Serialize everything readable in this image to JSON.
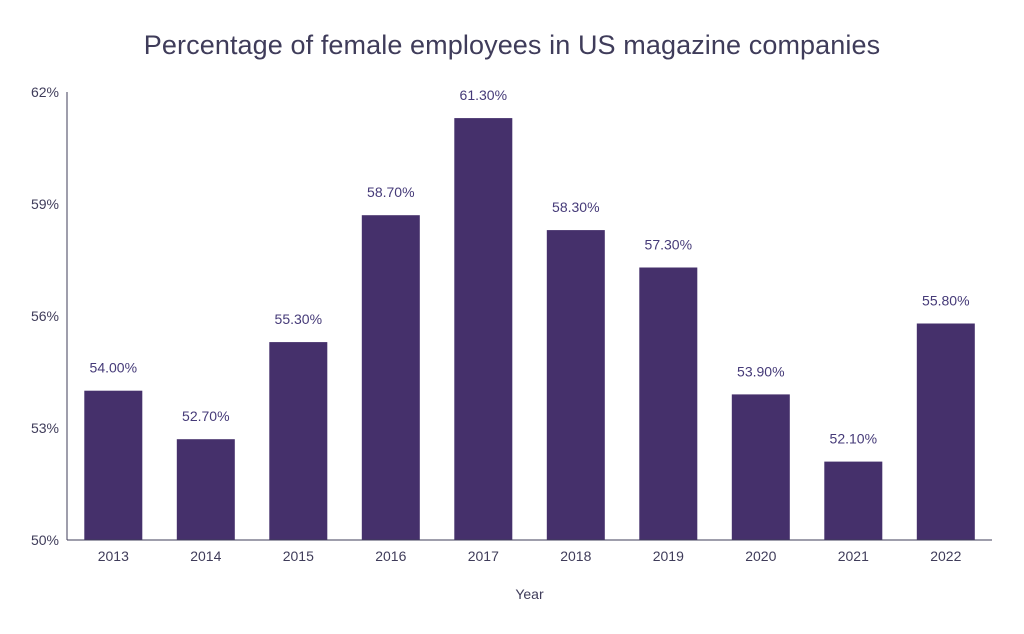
{
  "chart_data": {
    "type": "bar",
    "title": "Percentage of female employees in US magazine companies",
    "xlabel": "Year",
    "ylabel": "",
    "categories": [
      "2013",
      "2014",
      "2015",
      "2016",
      "2017",
      "2018",
      "2019",
      "2020",
      "2021",
      "2022"
    ],
    "values": [
      54.0,
      52.7,
      55.3,
      58.7,
      61.3,
      58.3,
      57.3,
      53.9,
      52.1,
      55.8
    ],
    "data_labels": [
      "54.00%",
      "52.70%",
      "55.30%",
      "58.70%",
      "61.30%",
      "58.30%",
      "57.30%",
      "53.90%",
      "52.10%",
      "55.80%"
    ],
    "ylim": [
      50,
      62
    ],
    "yticks": [
      50,
      53,
      56,
      59,
      62
    ],
    "ytick_labels": [
      "50%",
      "53%",
      "56%",
      "59%",
      "62%"
    ],
    "grid": false,
    "legend": "none",
    "bar_color": "#45306b"
  }
}
